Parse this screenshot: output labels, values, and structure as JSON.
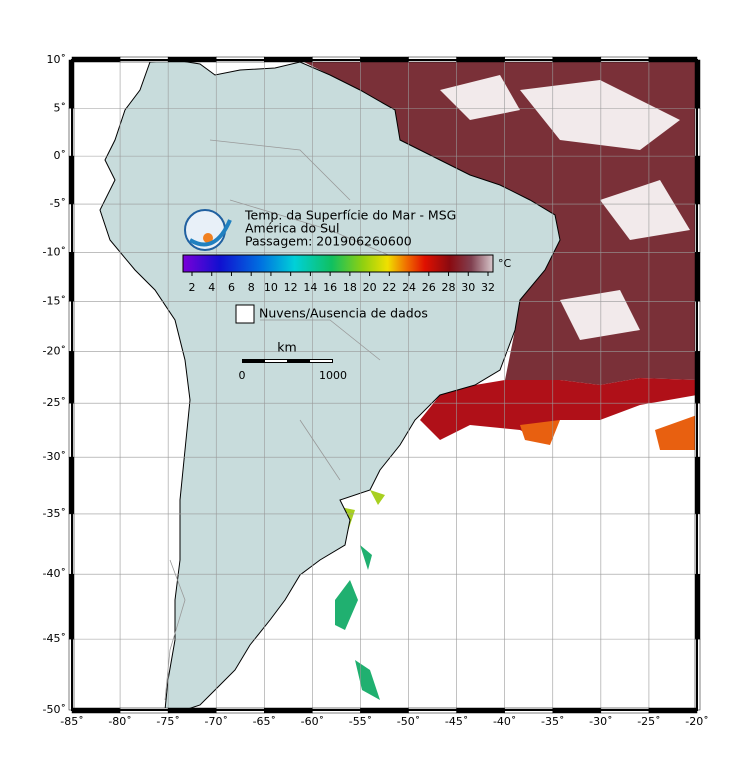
{
  "title": {
    "line1": "Temp. da Superfície do Mar - MSG",
    "line2": "América do Sul",
    "line3": "Passagem: 201906260600"
  },
  "colorbar": {
    "unit": "°C",
    "ticks": [
      2,
      4,
      6,
      8,
      10,
      12,
      14,
      16,
      18,
      20,
      22,
      24,
      26,
      28,
      30,
      32
    ]
  },
  "legend": "Nuvens/Ausencia de dados",
  "scale_bar": {
    "unit": "km",
    "start": "0",
    "end": "1000"
  },
  "axes": {
    "lat_ticks": [
      {
        "value": 10,
        "label": "10˚"
      },
      {
        "value": 5,
        "label": "5˚"
      },
      {
        "value": 0,
        "label": "0˚"
      },
      {
        "value": -5,
        "label": "-5˚"
      },
      {
        "value": -10,
        "label": "-10˚"
      },
      {
        "value": -15,
        "label": "-15˚"
      },
      {
        "value": -20,
        "label": "-20˚"
      },
      {
        "value": -25,
        "label": "-25˚"
      },
      {
        "value": -30,
        "label": "-30˚"
      },
      {
        "value": -35,
        "label": "-35˚"
      },
      {
        "value": -40,
        "label": "-40˚"
      },
      {
        "value": -45,
        "label": "-45˚"
      },
      {
        "value": -50,
        "label": "-50˚"
      }
    ],
    "lon_ticks": [
      {
        "value": -85,
        "label": "-85˚"
      },
      {
        "value": -80,
        "label": "-80˚"
      },
      {
        "value": -75,
        "label": "-75˚"
      },
      {
        "value": -70,
        "label": "-70˚"
      },
      {
        "value": -65,
        "label": "-65˚"
      },
      {
        "value": -60,
        "label": "-60˚"
      },
      {
        "value": -55,
        "label": "-55˚"
      },
      {
        "value": -50,
        "label": "-50˚"
      },
      {
        "value": -45,
        "label": "-45˚"
      },
      {
        "value": -40,
        "label": "-40˚"
      },
      {
        "value": -35,
        "label": "-35˚"
      },
      {
        "value": -30,
        "label": "-30˚"
      },
      {
        "value": -25,
        "label": "-25˚"
      },
      {
        "value": -20,
        "label": "-20˚"
      }
    ]
  }
}
